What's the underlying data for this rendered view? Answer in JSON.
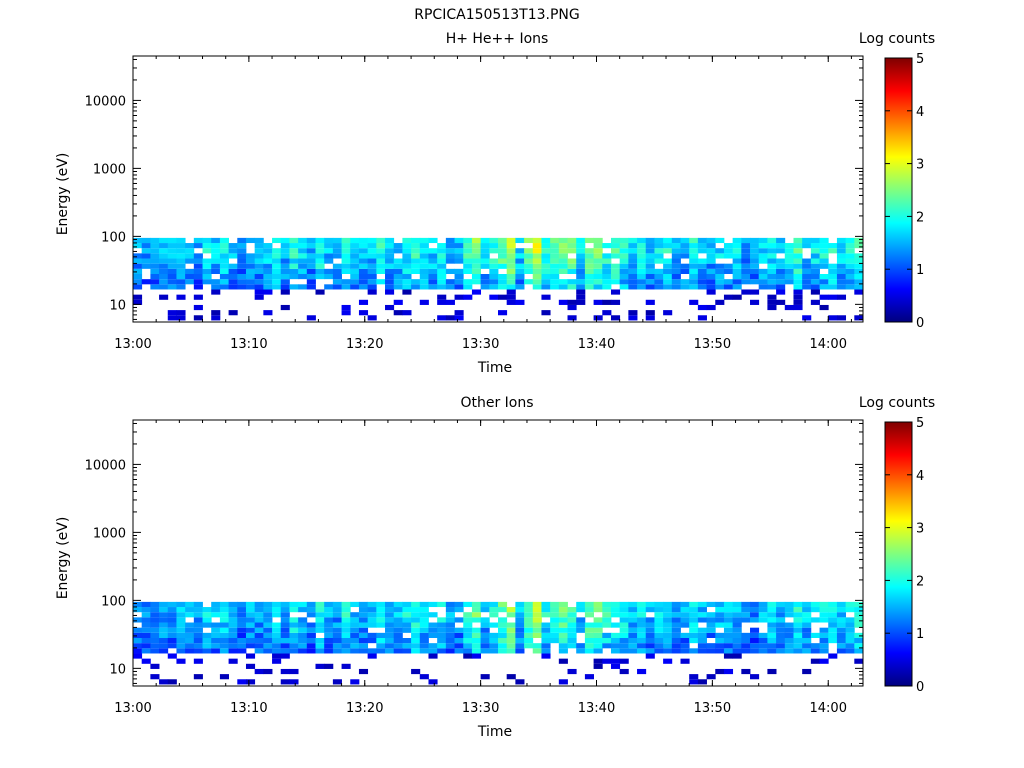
{
  "figure_title": "RPCICA150513T13.PNG",
  "colors": {
    "colormap": [
      "#00007f",
      "#0000ff",
      "#007fff",
      "#00ffff",
      "#7fff7f",
      "#ffff00",
      "#ff7f00",
      "#ff0000",
      "#7f0000"
    ]
  },
  "chart_data": [
    {
      "type": "heatmap",
      "title": "H+ He++ Ions",
      "xlabel": "Time",
      "ylabel": "Energy (eV)",
      "x_range": [
        "13:00",
        "14:03"
      ],
      "x_ticks": [
        "13:00",
        "13:10",
        "13:20",
        "13:30",
        "13:40",
        "13:50",
        "14:00"
      ],
      "y_scale": "log",
      "y_range": [
        5.5,
        45000
      ],
      "y_ticks": [
        "10",
        "100",
        "1000",
        "10000"
      ],
      "colorbar_label": "Log counts",
      "colorbar_range": [
        0,
        5
      ],
      "colorbar_ticks": [
        "0",
        "1",
        "2",
        "3",
        "4",
        "5"
      ],
      "data_energy_range_eV": [
        5.8,
        95
      ],
      "mean_log_counts_by_time": [
        1.4,
        1.2,
        1.3,
        1.5,
        1.4,
        1.6,
        1.5,
        1.3,
        1.7,
        1.5,
        1.8,
        1.4,
        1.3,
        1.5,
        1.4,
        1.6,
        2.0,
        1.5,
        1.9,
        1.6,
        1.4,
        1.9,
        1.5,
        1.4,
        2.0,
        1.6,
        1.5,
        1.5,
        1.9,
        1.6,
        1.5,
        1.8,
        2.0,
        1.7,
        1.6,
        1.8,
        1.4,
        1.4,
        2.0,
        2.4,
        1.6,
        1.9,
        2.3,
        2.7,
        1.6,
        2.4,
        2.8,
        1.9,
        2.1,
        2.4,
        2.3,
        1.6,
        2.4,
        2.3,
        2.0,
        2.1,
        1.9,
        1.6,
        1.8,
        1.5,
        1.7,
        1.8,
        1.4,
        1.5,
        1.9,
        1.5,
        1.4,
        1.6,
        1.6,
        1.6,
        1.3,
        1.3,
        1.6,
        1.8,
        1.5,
        1.7,
        2.1,
        1.6,
        1.7,
        1.8,
        1.9,
        1.6,
        1.9,
        2.1
      ],
      "peak": {
        "time": "13:31",
        "log_counts": 3.3
      }
    },
    {
      "type": "heatmap",
      "title": "Other Ions",
      "xlabel": "Time",
      "ylabel": "Energy (eV)",
      "x_range": [
        "13:00",
        "14:03"
      ],
      "x_ticks": [
        "13:00",
        "13:10",
        "13:20",
        "13:30",
        "13:40",
        "13:50",
        "14:00"
      ],
      "y_scale": "log",
      "y_range": [
        5.5,
        45000
      ],
      "y_ticks": [
        "10",
        "100",
        "1000",
        "10000"
      ],
      "colorbar_label": "Log counts",
      "colorbar_range": [
        0,
        5
      ],
      "colorbar_ticks": [
        "0",
        "1",
        "2",
        "3",
        "4",
        "5"
      ],
      "data_energy_range_eV": [
        5.8,
        95
      ],
      "mean_log_counts_by_time": [
        1.3,
        1.2,
        1.3,
        1.4,
        1.3,
        1.5,
        1.4,
        1.2,
        1.6,
        1.4,
        1.7,
        1.3,
        1.2,
        1.4,
        1.3,
        1.5,
        1.8,
        1.4,
        1.8,
        1.5,
        1.3,
        1.8,
        1.4,
        1.3,
        1.9,
        1.5,
        1.4,
        1.4,
        1.8,
        1.5,
        1.4,
        1.7,
        1.9,
        1.6,
        1.5,
        1.7,
        1.3,
        1.3,
        1.9,
        2.2,
        1.5,
        1.8,
        2.2,
        2.5,
        1.5,
        2.2,
        2.7,
        1.8,
        2.0,
        2.2,
        2.2,
        1.5,
        2.2,
        2.2,
        1.9,
        2.0,
        1.8,
        1.5,
        1.7,
        1.4,
        1.6,
        1.7,
        1.3,
        1.4,
        1.8,
        1.4,
        1.3,
        1.5,
        1.5,
        1.5,
        1.2,
        1.2,
        1.5,
        1.7,
        1.4,
        1.6,
        1.9,
        1.5,
        1.6,
        1.7,
        1.8,
        1.5,
        1.8,
        1.9
      ],
      "peak": {
        "time": "13:31",
        "log_counts": 3.2
      }
    }
  ]
}
